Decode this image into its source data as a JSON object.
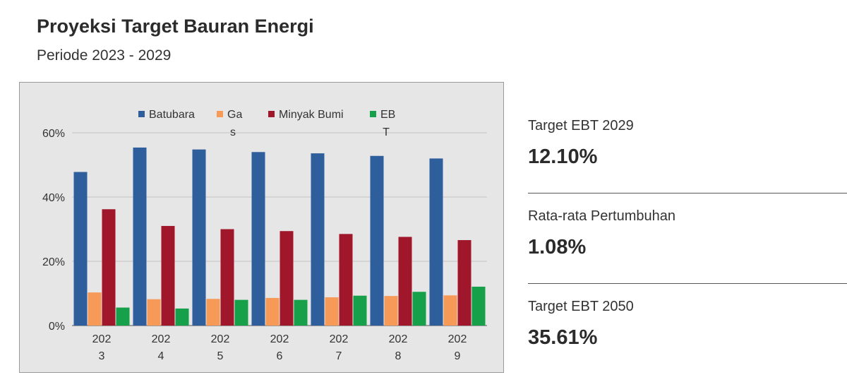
{
  "header": {
    "title": "Proyeksi Target Bauran Energi",
    "subtitle": "Periode 2023 - 2029"
  },
  "stats": [
    {
      "label": "Target EBT 2029",
      "value": "12.10%"
    },
    {
      "label": "Rata-rata Pertumbuhan",
      "value": "1.08%"
    },
    {
      "label": "Target EBT 2050",
      "value": "35.61%"
    }
  ],
  "chart_data": {
    "type": "bar",
    "categories": [
      "2023",
      "2024",
      "2025",
      "2026",
      "2027",
      "2028",
      "2029"
    ],
    "series": [
      {
        "name": "Batubara",
        "color": "#2e5e9c",
        "values": [
          47.8,
          55.4,
          54.8,
          54.0,
          53.6,
          52.8,
          52.0
        ]
      },
      {
        "name": "Gas",
        "color": "#f79a57",
        "values": [
          10.3,
          8.2,
          8.3,
          8.6,
          8.8,
          9.2,
          9.4
        ]
      },
      {
        "name": "Minyak Bumi",
        "color": "#a0172b",
        "values": [
          36.2,
          31.0,
          30.0,
          29.4,
          28.5,
          27.6,
          26.6
        ]
      },
      {
        "name": "EBT",
        "color": "#16a04a",
        "values": [
          5.6,
          5.3,
          8.0,
          8.0,
          9.3,
          10.5,
          12.1
        ]
      }
    ],
    "yticks": [
      "0%",
      "20%",
      "40%",
      "60%"
    ],
    "ylim": [
      0,
      60
    ],
    "grid": true,
    "legend": "top",
    "title": "",
    "xlabel": "",
    "ylabel": ""
  }
}
